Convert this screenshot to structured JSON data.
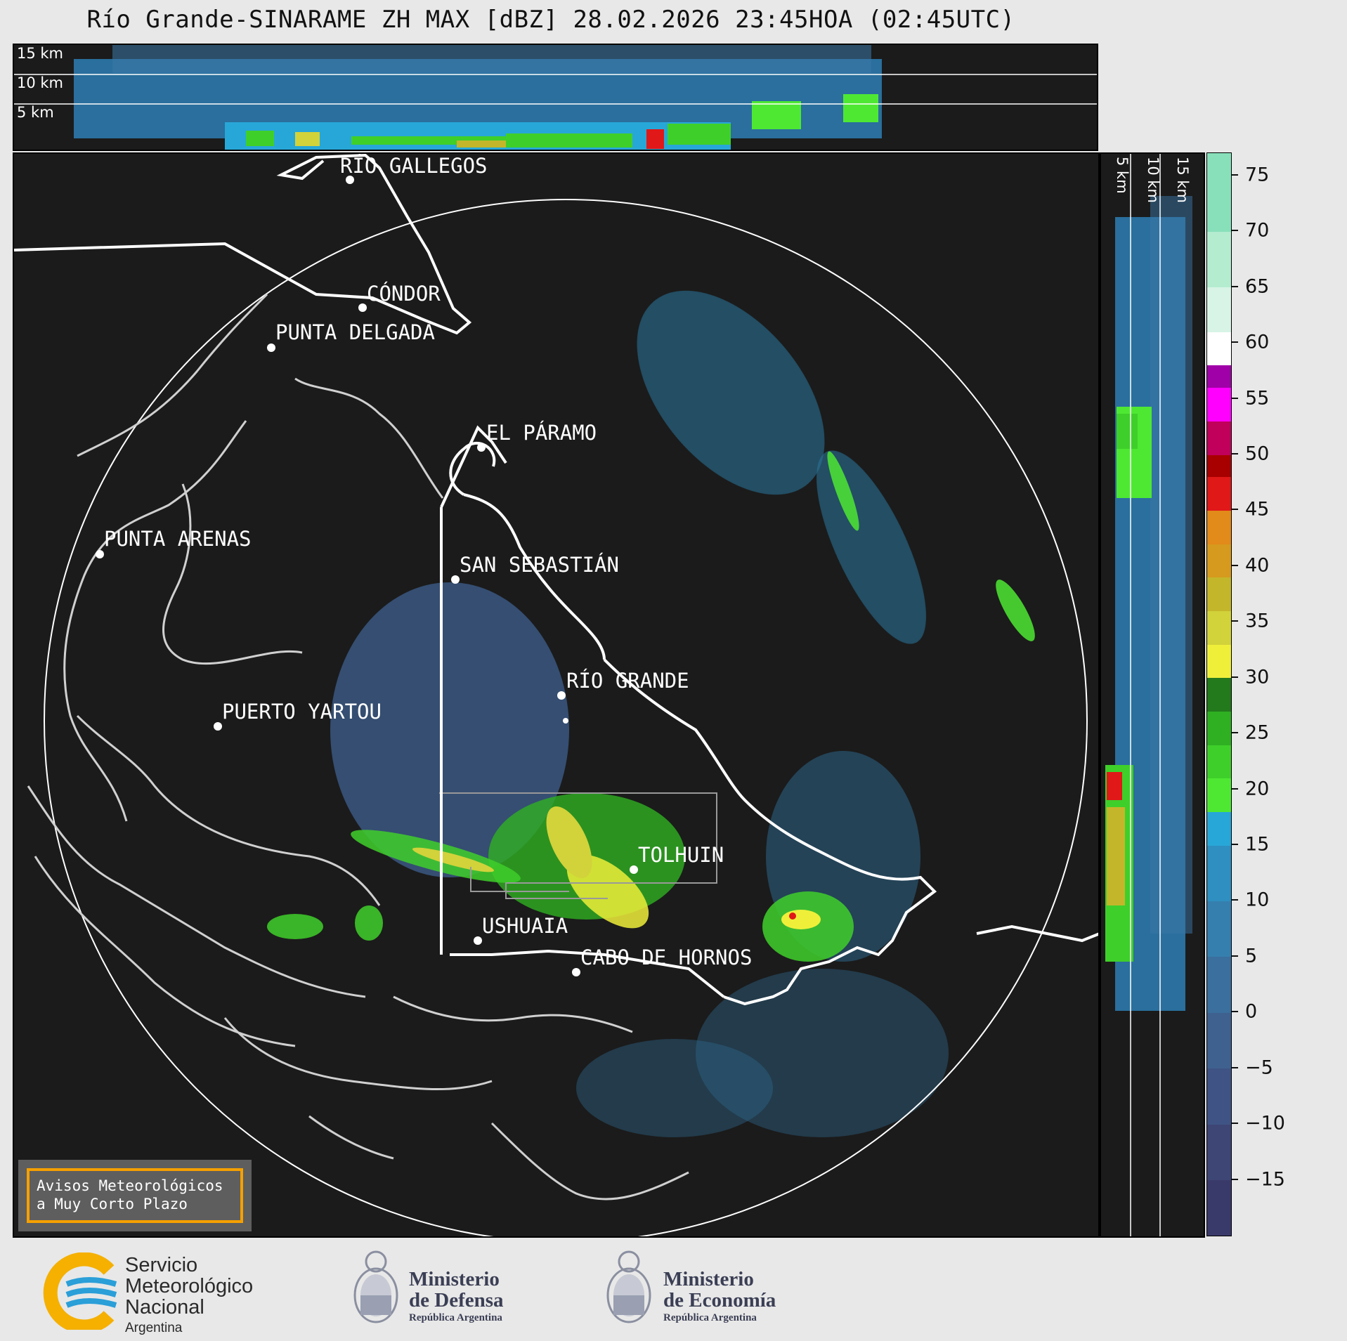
{
  "title": "Río Grande-SINARAME ZH MAX [dBZ] 28.02.2026 23:45HOA (02:45UTC)",
  "height_labels": [
    "15 km",
    "10 km",
    "5 km"
  ],
  "colorbar": {
    "label_values": [
      "75",
      "70",
      "65",
      "60",
      "55",
      "50",
      "45",
      "40",
      "35",
      "30",
      "25",
      "20",
      "15",
      "10",
      "5",
      "0",
      "−5",
      "−10",
      "−15"
    ],
    "min": -20,
    "max": 77,
    "bands": [
      {
        "from": -20,
        "to": -15,
        "color": "#3a3a6a"
      },
      {
        "from": -15,
        "to": -10,
        "color": "#3e4676"
      },
      {
        "from": -10,
        "to": -5,
        "color": "#3f5484"
      },
      {
        "from": -5,
        "to": 0,
        "color": "#3f6190"
      },
      {
        "from": 0,
        "to": 5,
        "color": "#3b6f9d"
      },
      {
        "from": 5,
        "to": 10,
        "color": "#357fae"
      },
      {
        "from": 10,
        "to": 15,
        "color": "#2e8fc0"
      },
      {
        "from": 15,
        "to": 18,
        "color": "#27a7d8"
      },
      {
        "from": 18,
        "to": 21,
        "color": "#4ee833"
      },
      {
        "from": 21,
        "to": 24,
        "color": "#3fcf2a"
      },
      {
        "from": 24,
        "to": 27,
        "color": "#2fb022"
      },
      {
        "from": 27,
        "to": 30,
        "color": "#237a1c"
      },
      {
        "from": 30,
        "to": 33,
        "color": "#efef3a"
      },
      {
        "from": 33,
        "to": 36,
        "color": "#d2d23a"
      },
      {
        "from": 36,
        "to": 39,
        "color": "#c4b62a"
      },
      {
        "from": 39,
        "to": 42,
        "color": "#d69a1e"
      },
      {
        "from": 42,
        "to": 45,
        "color": "#e28a1a"
      },
      {
        "from": 45,
        "to": 48,
        "color": "#e01818"
      },
      {
        "from": 48,
        "to": 50,
        "color": "#a80000"
      },
      {
        "from": 50,
        "to": 53,
        "color": "#c0005a"
      },
      {
        "from": 53,
        "to": 56,
        "color": "#ff00ff"
      },
      {
        "from": 56,
        "to": 58,
        "color": "#a000a8"
      },
      {
        "from": 58,
        "to": 61,
        "color": "#ffffff"
      },
      {
        "from": 61,
        "to": 65,
        "color": "#d8f4e6"
      },
      {
        "from": 65,
        "to": 70,
        "color": "#b4ecd0"
      },
      {
        "from": 70,
        "to": 77,
        "color": "#88e0ba"
      }
    ]
  },
  "cities": [
    {
      "name": "RÍO GALLEGOS"
    },
    {
      "name": "CÓNDOR"
    },
    {
      "name": "PUNTA DELGADA"
    },
    {
      "name": "EL PÁRAMO"
    },
    {
      "name": "PUNTA ARENAS"
    },
    {
      "name": "SAN SEBASTIÁN"
    },
    {
      "name": "RÍO GRANDE"
    },
    {
      "name": "PUERTO YARTOU"
    },
    {
      "name": "TOLHUIN"
    },
    {
      "name": "USHUAIA"
    },
    {
      "name": "CABO DE HORNOS"
    }
  ],
  "notice": {
    "line1": "Avisos Meteorológicos",
    "line2": "a Muy Corto Plazo"
  },
  "logos": {
    "smn": {
      "line1": "Servicio",
      "line2": "Meteorológico",
      "line3": "Nacional",
      "line4": "Argentina"
    },
    "defensa": {
      "line1": "Ministerio",
      "line2": "de Defensa",
      "line3": "República Argentina"
    },
    "economia": {
      "line1": "Ministerio",
      "line2": "de Economía",
      "line3": "República Argentina"
    }
  }
}
